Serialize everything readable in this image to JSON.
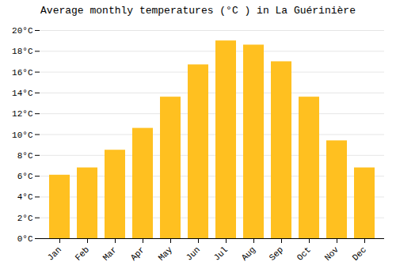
{
  "chart_data": {
    "type": "bar",
    "title": "Average monthly temperatures (°C ) in La Guérinière",
    "categories": [
      "Jan",
      "Feb",
      "Mar",
      "Apr",
      "May",
      "Jun",
      "Jul",
      "Aug",
      "Sep",
      "Oct",
      "Nov",
      "Dec"
    ],
    "values": [
      6.1,
      6.8,
      8.5,
      10.6,
      13.6,
      16.7,
      19.0,
      18.6,
      17.0,
      13.6,
      9.4,
      6.8
    ],
    "color": "#FFC020",
    "ylim": [
      0,
      20
    ],
    "yticks": [
      {
        "value": 0,
        "label": "0°C"
      },
      {
        "value": 2,
        "label": "2°C"
      },
      {
        "value": 4,
        "label": "4°C"
      },
      {
        "value": 6,
        "label": "6°C"
      },
      {
        "value": 8,
        "label": "8°C"
      },
      {
        "value": 10,
        "label": "10°C"
      },
      {
        "value": 12,
        "label": "12°C"
      },
      {
        "value": 14,
        "label": "14°C"
      },
      {
        "value": 16,
        "label": "16°C"
      },
      {
        "value": 18,
        "label": "18°C"
      },
      {
        "value": 20,
        "label": "20°C"
      }
    ],
    "grid": true
  }
}
